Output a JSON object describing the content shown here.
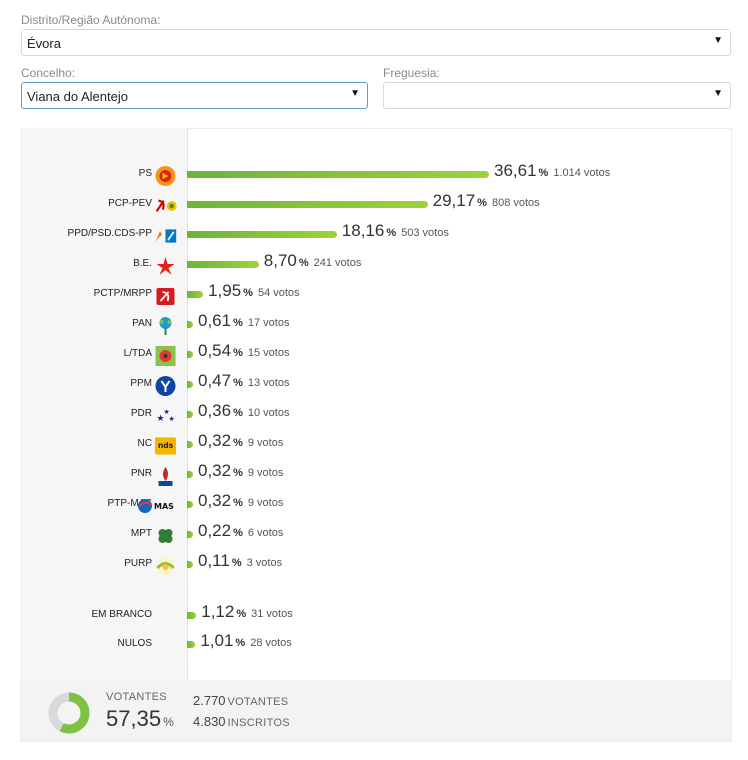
{
  "filters": {
    "distrito_label": "Distrito/Região Autónoma:",
    "distrito_value": "Évora",
    "concelho_label": "Concelho:",
    "concelho_value": "Viana do Alentejo",
    "freguesia_label": "Freguesia:",
    "freguesia_value": ""
  },
  "chart_data": {
    "type": "bar",
    "orientation": "horizontal",
    "categories": [
      "PS",
      "PCP-PEV",
      "PPD/PSD.CDS-PP",
      "B.E.",
      "PCTP/MRPP",
      "PAN",
      "L/TDA",
      "PPM",
      "PDR",
      "NC",
      "PNR",
      "PTP-MAS",
      "MPT",
      "PURP",
      "EM BRANCO",
      "NULOS"
    ],
    "values": [
      36.61,
      29.17,
      18.16,
      8.7,
      1.95,
      0.61,
      0.54,
      0.47,
      0.36,
      0.32,
      0.32,
      0.32,
      0.22,
      0.11,
      1.12,
      1.01
    ],
    "value_labels": [
      "36,61",
      "29,17",
      "18,16",
      "8,70",
      "1,95",
      "0,61",
      "0,54",
      "0,47",
      "0,36",
      "0,32",
      "0,32",
      "0,32",
      "0,22",
      "0,11",
      "1,12",
      "1,01"
    ],
    "pct_symbol": "%",
    "votes": [
      "1.014 votos",
      "808 votos",
      "503 votos",
      "241 votos",
      "54 votos",
      "17 votos",
      "15 votos",
      "13 votos",
      "10 votos",
      "9 votos",
      "9 votos",
      "9 votos",
      "6 votos",
      "3 votos",
      "31 votos",
      "28 votos"
    ],
    "logos": [
      "ps-logo-icon",
      "pcp-pev-logo-icon",
      "ppd-psd-cds-pp-logo-icon",
      "be-logo-icon",
      "pctp-mrpp-logo-icon",
      "pan-logo-icon",
      "livre-tda-logo-icon",
      "ppm-logo-icon",
      "pdr-logo-icon",
      "nc-logo-icon",
      "pnr-logo-icon",
      "ptp-mas-logo-icon",
      "mpt-logo-icon",
      "purp-logo-icon",
      "",
      ""
    ],
    "bar_color": "#7dc242",
    "xlim": [
      0,
      36.61
    ]
  },
  "turnout": {
    "label": "VOTANTES",
    "value": "57,35",
    "pct_symbol": "%",
    "fraction": 0.5735,
    "votantes_count": "2.770",
    "votantes_label": "VOTANTES",
    "inscritos_count": "4.830",
    "inscritos_label": "INSCRITOS",
    "ring_color": "#7dc242",
    "ring_track_color": "#d9d9d9"
  }
}
